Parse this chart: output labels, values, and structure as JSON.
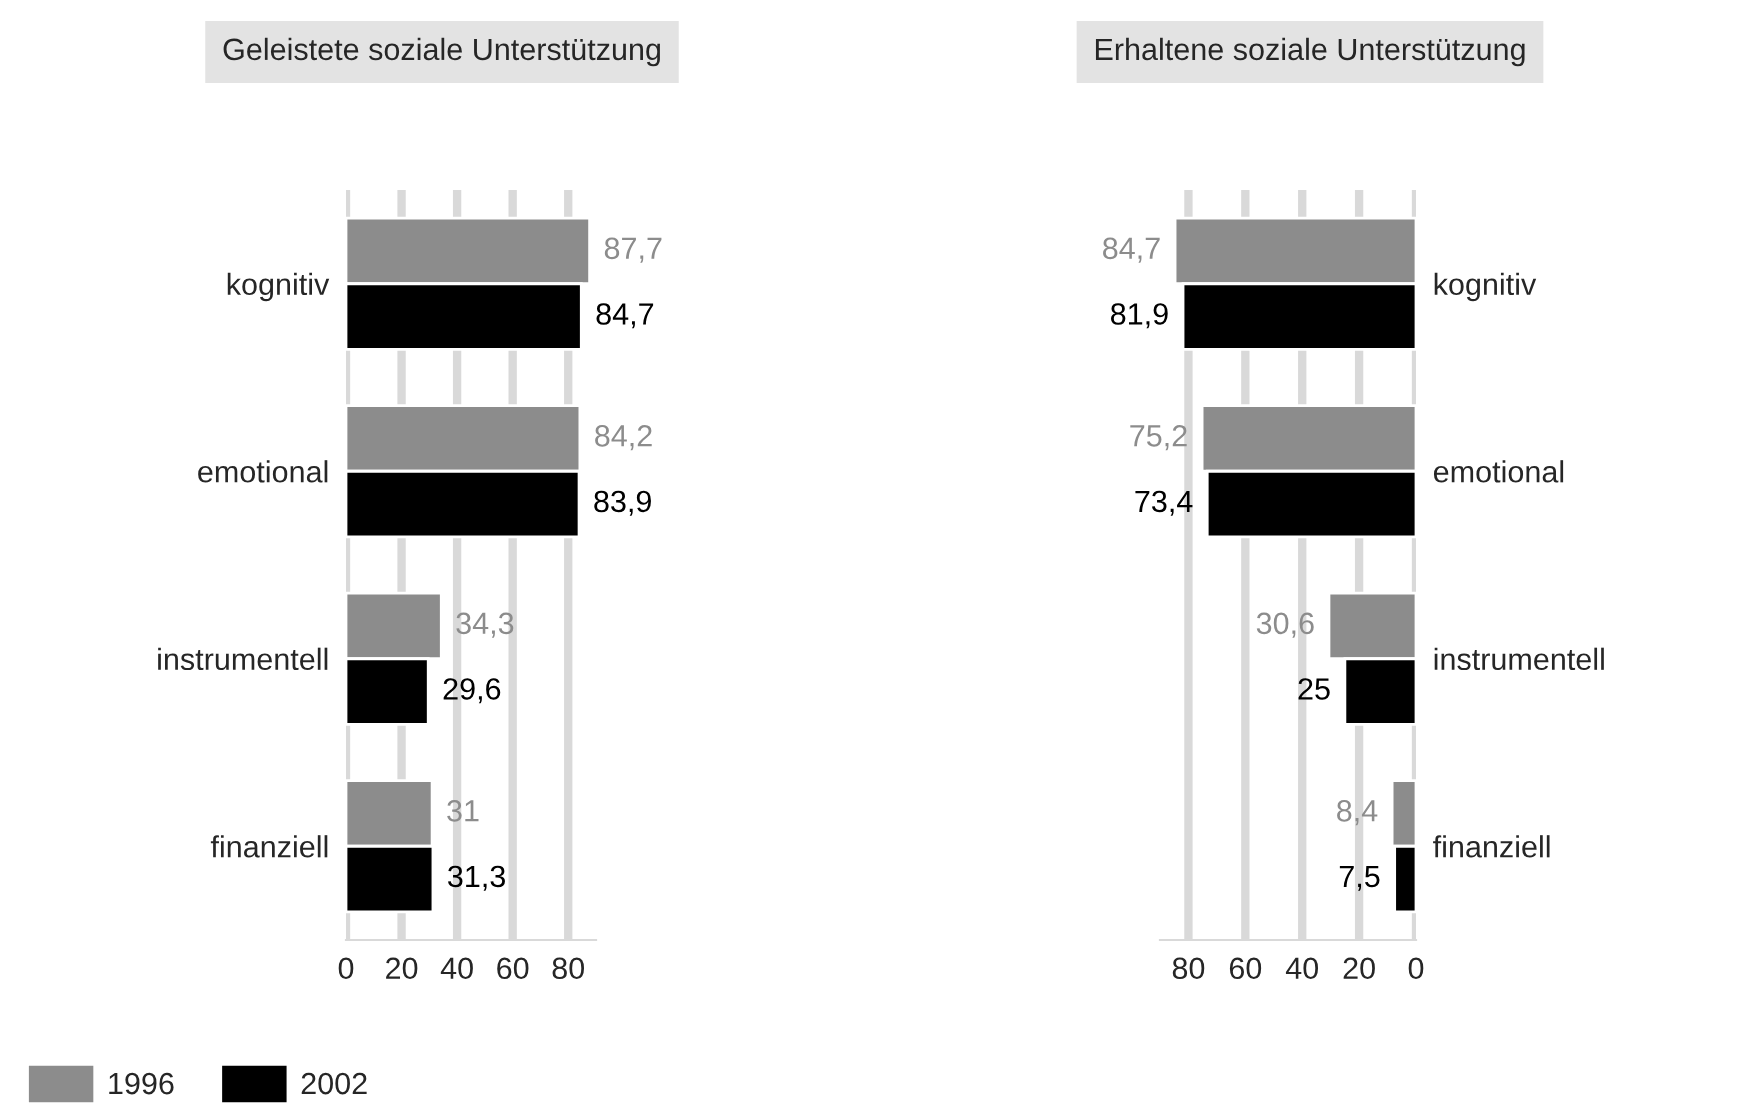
{
  "chart_data": [
    {
      "type": "bar",
      "orientation": "horizontal",
      "title": "Geleistete soziale Unterstützung",
      "categories": [
        "kognitiv",
        "emotional",
        "instrumentell",
        "finanziell"
      ],
      "series": [
        {
          "name": "1996",
          "color": "#8c8c8c",
          "values": [
            87.7,
            84.2,
            34.3,
            31
          ],
          "value_labels": [
            "87,7",
            "84,2",
            "34,3",
            "31"
          ]
        },
        {
          "name": "2002",
          "color": "#000000",
          "values": [
            84.7,
            83.9,
            29.6,
            31.3
          ],
          "value_labels": [
            "84,7",
            "83,9",
            "29,6",
            "31,3"
          ]
        }
      ],
      "xlim": [
        0,
        90
      ],
      "xticks": [
        0,
        20,
        40,
        60,
        80
      ],
      "grid": "x",
      "legend": "bottom"
    },
    {
      "type": "bar",
      "orientation": "horizontal",
      "title": "Erhaltene soziale Unterstützung",
      "categories": [
        "kognitiv",
        "emotional",
        "instrumentell",
        "finanziell"
      ],
      "series": [
        {
          "color": "#8c8c8c",
          "values": [
            84.7,
            75.2,
            30.6,
            8.4
          ],
          "value_labels": [
            "84,7",
            "75,2",
            "30,6",
            "8,4"
          ]
        },
        {
          "color": "#000000",
          "values": [
            81.9,
            73.4,
            25,
            7.5
          ],
          "value_labels": [
            "81,9",
            "73,4",
            "25",
            "7,5"
          ]
        }
      ],
      "xlim": [
        90,
        0
      ],
      "xticks": [
        80,
        60,
        40,
        20,
        0
      ],
      "grid": "x"
    }
  ]
}
